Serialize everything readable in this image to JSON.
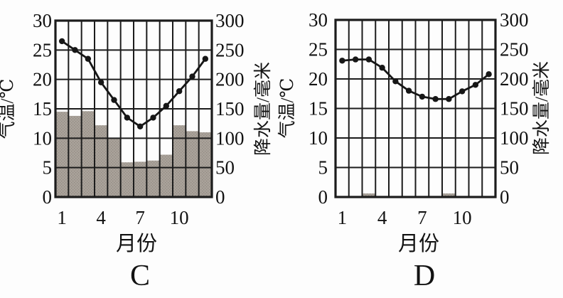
{
  "chart_data": [
    {
      "panel_label": "C",
      "type": "bar+line",
      "xlabel": "月份",
      "x": [
        1,
        2,
        3,
        4,
        5,
        6,
        7,
        8,
        9,
        10,
        11,
        12
      ],
      "x_tick_positions": [
        1,
        4,
        7,
        10
      ],
      "x_tick_labels": [
        "1",
        "4",
        "7",
        "10"
      ],
      "left_axis": {
        "label": "气温/℃",
        "range": [
          0,
          30
        ],
        "ticks": [
          30,
          25,
          20,
          15,
          10,
          5,
          0
        ]
      },
      "right_axis": {
        "label": "降水量/毫米",
        "range": [
          0,
          300
        ],
        "ticks": [
          300,
          250,
          200,
          150,
          100,
          50,
          0
        ]
      },
      "grid": true,
      "legend": false,
      "series": [
        {
          "name": "气温",
          "type": "line",
          "axis": "left",
          "unit": "℃",
          "values": [
            26.5,
            25,
            23.5,
            19.5,
            16.5,
            13.5,
            12,
            13.5,
            15.5,
            18,
            20.5,
            23.5
          ]
        },
        {
          "name": "降水量",
          "type": "bar",
          "axis": "right",
          "unit": "毫米",
          "values": [
            145,
            138,
            146,
            122,
            100,
            59,
            60,
            62,
            72,
            122,
            112,
            110
          ]
        }
      ]
    },
    {
      "panel_label": "D",
      "type": "bar+line",
      "xlabel": "月份",
      "x": [
        1,
        2,
        3,
        4,
        5,
        6,
        7,
        8,
        9,
        10,
        11,
        12
      ],
      "x_tick_positions": [
        1,
        4,
        7,
        10
      ],
      "x_tick_labels": [
        "1",
        "4",
        "7",
        "10"
      ],
      "left_axis": {
        "label": "气温/℃",
        "range": [
          0,
          30
        ],
        "ticks": [
          30,
          25,
          20,
          15,
          10,
          5,
          0
        ]
      },
      "right_axis": {
        "label": "降水量/毫米",
        "range": [
          0,
          300
        ],
        "ticks": [
          300,
          250,
          200,
          150,
          100,
          50,
          0
        ]
      },
      "grid": true,
      "legend": false,
      "series": [
        {
          "name": "气温",
          "type": "line",
          "axis": "left",
          "unit": "℃",
          "values": [
            23.1,
            23.3,
            23.3,
            21.9,
            19.6,
            18,
            17,
            16.6,
            16.6,
            17.9,
            19,
            20.8
          ]
        },
        {
          "name": "降水量",
          "type": "bar",
          "axis": "right",
          "unit": "毫米",
          "values": [
            0,
            0,
            6,
            0,
            0,
            0,
            0,
            0,
            6,
            0,
            0,
            0
          ]
        }
      ]
    }
  ],
  "colors": {
    "background": "#fdfdfd",
    "bar_fill": "#a9a29a",
    "bar_speckle": "#918a82",
    "line": "#161616",
    "grid": "#1c1c1c",
    "text": "#121212"
  }
}
